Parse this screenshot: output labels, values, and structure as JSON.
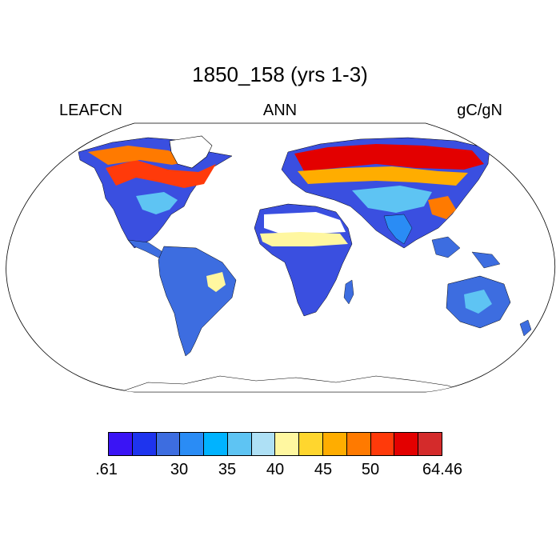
{
  "title": "1850_158 (yrs 1-3)",
  "left_string": "LEAFCN",
  "center_string": "ANN",
  "right_string": "gC/gN",
  "colorbar": {
    "colors": [
      "#3a14f5",
      "#1e34ee",
      "#3d6de0",
      "#2a8cf5",
      "#00b3ff",
      "#5ec4f3",
      "#aee0f5",
      "#fff7a0",
      "#ffd62e",
      "#ffad00",
      "#ff7a00",
      "#ff3a0a",
      "#e30000",
      "#d42b2b"
    ],
    "tick_labels": [
      ".61",
      "30",
      "35",
      "40",
      "45",
      "50",
      "64.46"
    ]
  }
}
